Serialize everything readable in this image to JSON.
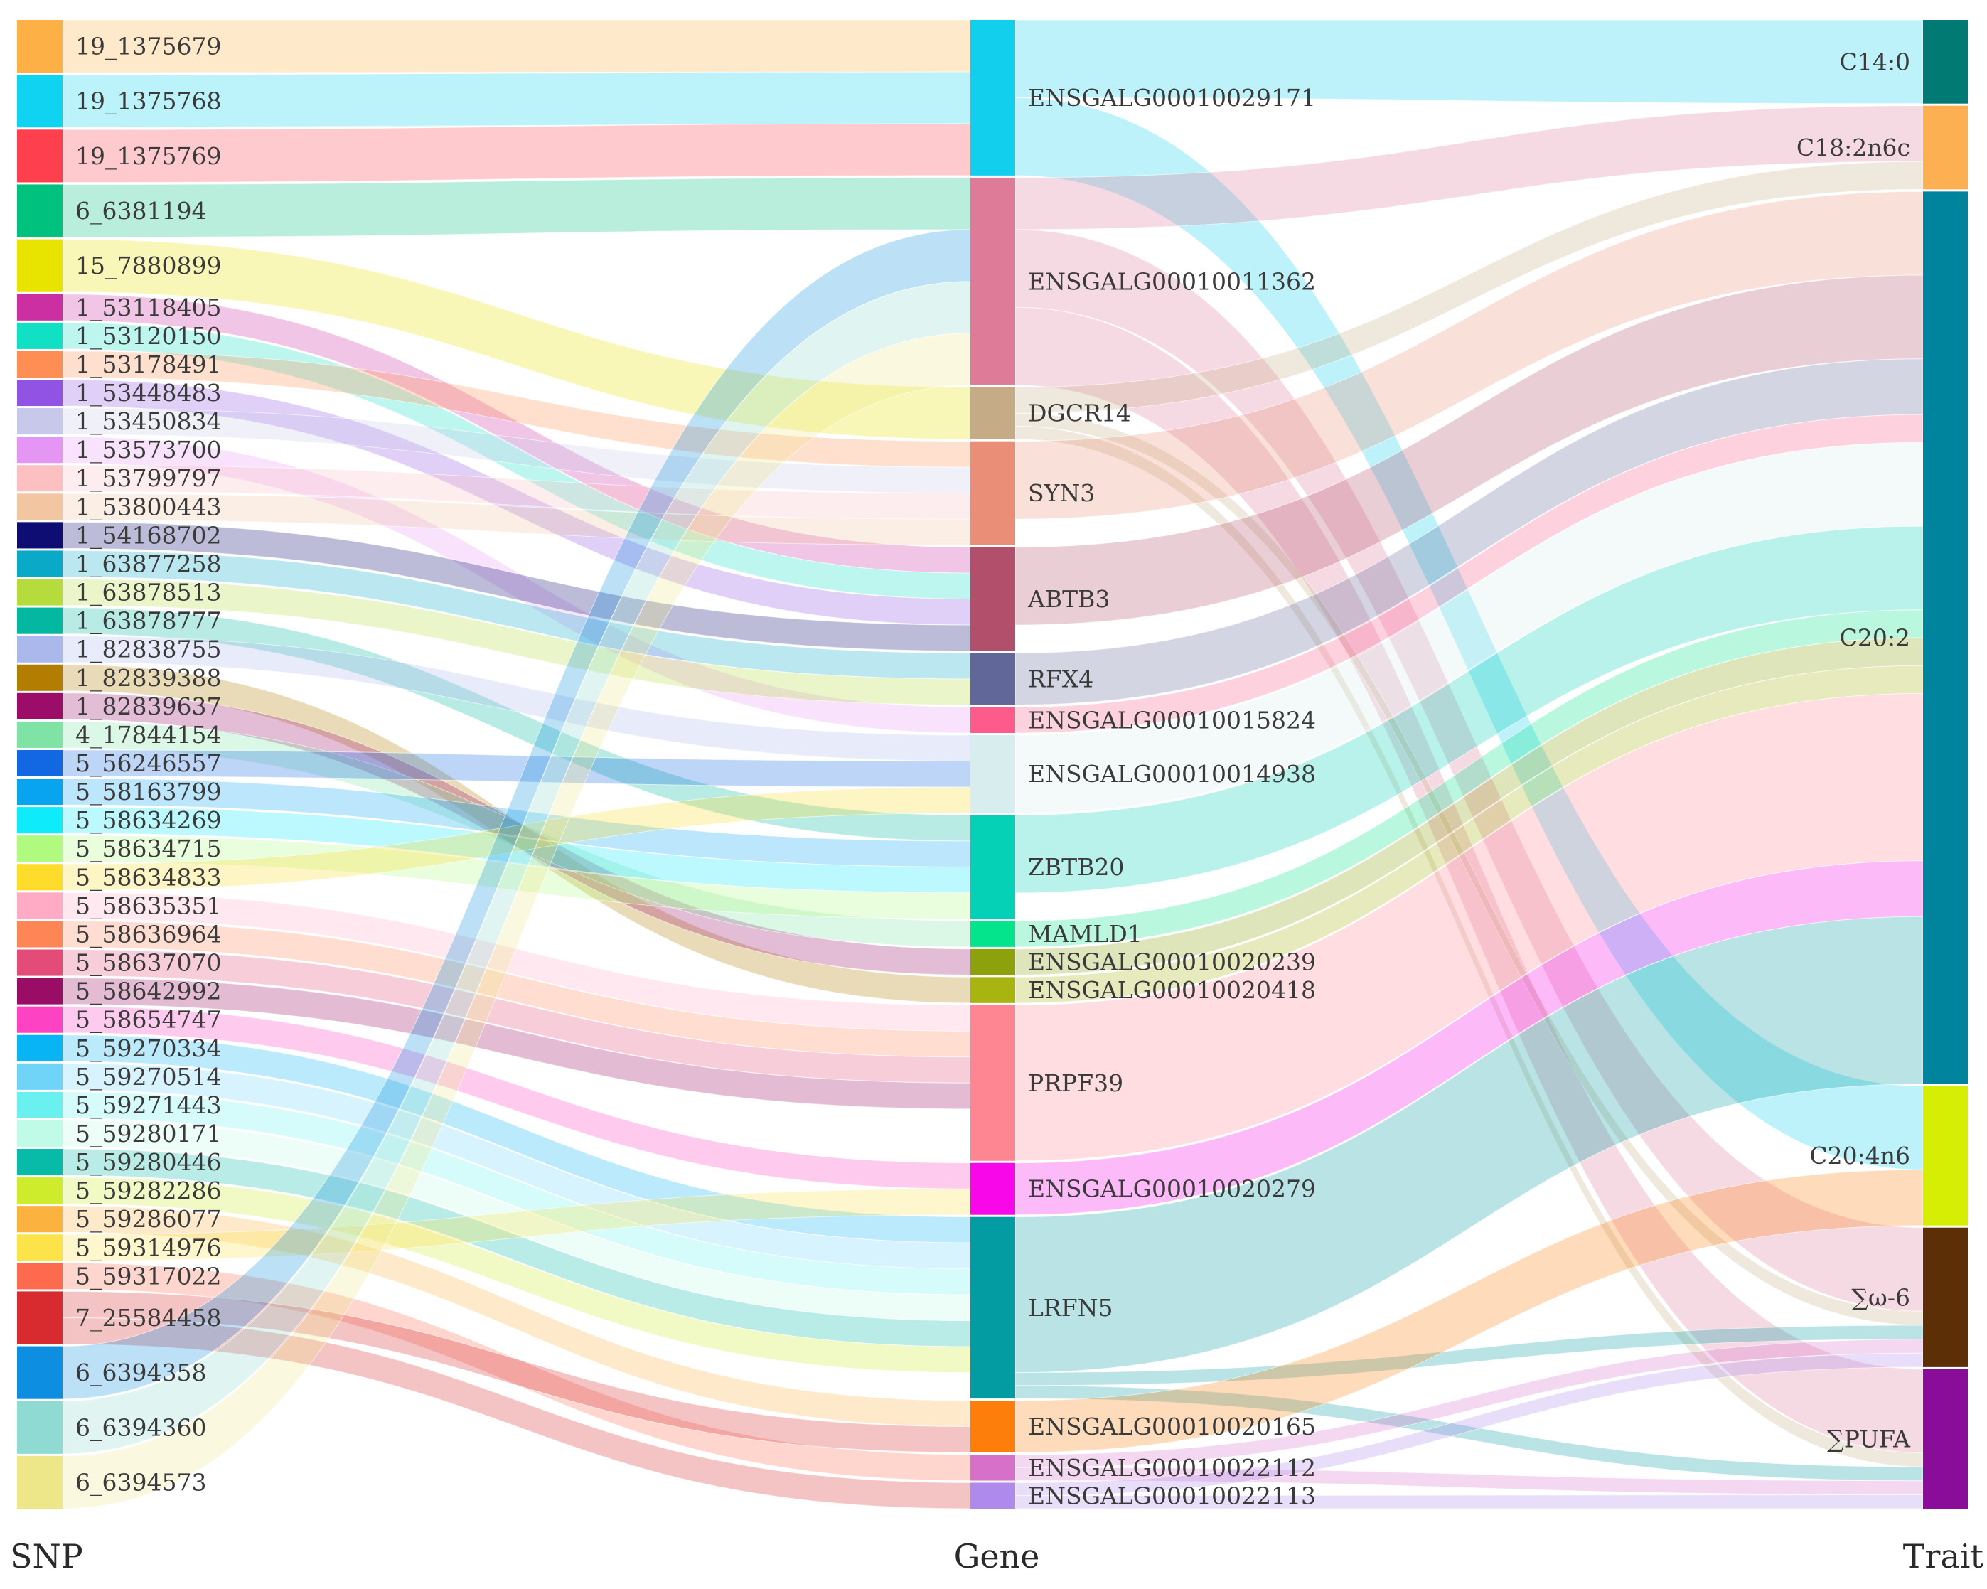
{
  "columns": [
    "SNP",
    "Gene",
    "Trait"
  ],
  "snps": [
    {
      "id": "19_1375679",
      "color": "#FDB045"
    },
    {
      "id": "19_1375768",
      "color": "#0FD3F0"
    },
    {
      "id": "19_1375769",
      "color": "#FE3F4E"
    },
    {
      "id": "6_6381194",
      "color": "#01C17E"
    },
    {
      "id": "15_7880899",
      "color": "#E8E400"
    },
    {
      "id": "1_53118405",
      "color": "#CC2FA1"
    },
    {
      "id": "1_53120150",
      "color": "#12E0C4"
    },
    {
      "id": "1_53178491",
      "color": "#FE8E53"
    },
    {
      "id": "1_53448483",
      "color": "#9053E3"
    },
    {
      "id": "1_53450834",
      "color": "#C8C8EA"
    },
    {
      "id": "1_53573700",
      "color": "#E596F5"
    },
    {
      "id": "1_53799797",
      "color": "#FCC0C2"
    },
    {
      "id": "1_53800443",
      "color": "#F1C6A1"
    },
    {
      "id": "1_54168702",
      "color": "#0D0D73"
    },
    {
      "id": "1_63877258",
      "color": "#0AA9C8"
    },
    {
      "id": "1_63878513",
      "color": "#B5DC3C"
    },
    {
      "id": "1_63878777",
      "color": "#03B7A0"
    },
    {
      "id": "1_82838755",
      "color": "#ABB8EC"
    },
    {
      "id": "1_82839388",
      "color": "#B27D00"
    },
    {
      "id": "1_82839637",
      "color": "#9B0D68"
    },
    {
      "id": "4_17844154",
      "color": "#7FE3A6"
    },
    {
      "id": "5_56246557",
      "color": "#1268E3"
    },
    {
      "id": "5_58163799",
      "color": "#09A4F0"
    },
    {
      "id": "5_58634269",
      "color": "#0EEBFA"
    },
    {
      "id": "5_58634715",
      "color": "#B0FA80"
    },
    {
      "id": "5_58634833",
      "color": "#FDDC2B"
    },
    {
      "id": "5_58635351",
      "color": "#FFABC6"
    },
    {
      "id": "5_58636964",
      "color": "#FE8656"
    },
    {
      "id": "5_58637070",
      "color": "#E34B79"
    },
    {
      "id": "5_58642992",
      "color": "#9A0D66"
    },
    {
      "id": "5_58654747",
      "color": "#FD43C4"
    },
    {
      "id": "5_59270334",
      "color": "#08B4F4"
    },
    {
      "id": "5_59270514",
      "color": "#70D4F8"
    },
    {
      "id": "5_59271443",
      "color": "#6AF0EF"
    },
    {
      "id": "5_59280171",
      "color": "#C0FBE7"
    },
    {
      "id": "5_59280446",
      "color": "#08BBA8"
    },
    {
      "id": "5_59282286",
      "color": "#CEEB2C"
    },
    {
      "id": "5_59286077",
      "color": "#FBB23F"
    },
    {
      "id": "5_59314976",
      "color": "#FDE34A"
    },
    {
      "id": "5_59317022",
      "color": "#FD6A4E"
    },
    {
      "id": "7_25584458",
      "color": "#D82B2F"
    },
    {
      "id": "6_6394358",
      "color": "#0D8EE0"
    },
    {
      "id": "6_6394360",
      "color": "#8FDAD2"
    },
    {
      "id": "6_6394573",
      "color": "#EEE78A"
    }
  ],
  "genes": [
    {
      "id": "ENSGALG00010029171",
      "color": "#13CFEE"
    },
    {
      "id": "ENSGALG00010011362",
      "color": "#DE7B99"
    },
    {
      "id": "DGCR14",
      "color": "#C5AC86"
    },
    {
      "id": "SYN3",
      "color": "#EA8E78"
    },
    {
      "id": "ABTB3",
      "color": "#B24F6B"
    },
    {
      "id": "RFX4",
      "color": "#616899"
    },
    {
      "id": "ENSGALG00010015824",
      "color": "#FD5B8C"
    },
    {
      "id": "ENSGALG00010014938",
      "color": "#D8EEEE"
    },
    {
      "id": "ZBTB20",
      "color": "#04D1B6"
    },
    {
      "id": "MAMLD1",
      "color": "#04E48C"
    },
    {
      "id": "ENSGALG00010020239",
      "color": "#8CA10C"
    },
    {
      "id": "ENSGALG00010020418",
      "color": "#A8B510"
    },
    {
      "id": "PRPF39",
      "color": "#FE8592"
    },
    {
      "id": "ENSGALG00010020279",
      "color": "#F808E8"
    },
    {
      "id": "LRFN5",
      "color": "#039CA3"
    },
    {
      "id": "ENSGALG00010020165",
      "color": "#FD7E0B"
    },
    {
      "id": "ENSGALG00010022112",
      "color": "#D670C8"
    },
    {
      "id": "ENSGALG00010022113",
      "color": "#AE8AEC"
    }
  ],
  "traits": [
    {
      "id": "C14:0",
      "color": "#017A73"
    },
    {
      "id": "C18:2n6c",
      "color": "#FDB052"
    },
    {
      "id": "C20:2",
      "color": "#00849E"
    },
    {
      "id": "C20:4n6",
      "color": "#D6EE03"
    },
    {
      "id": "∑ω-6",
      "color": "#5C2F06"
    },
    {
      "id": "∑PUFA",
      "color": "#8A0D99"
    }
  ],
  "snp_gene_links": [
    {
      "source": "19_1375679",
      "target": "ENSGALG00010029171",
      "value": 1
    },
    {
      "source": "19_1375768",
      "target": "ENSGALG00010029171",
      "value": 1
    },
    {
      "source": "19_1375769",
      "target": "ENSGALG00010029171",
      "value": 1
    },
    {
      "source": "6_6381194",
      "target": "ENSGALG00010011362",
      "value": 1
    },
    {
      "source": "15_7880899",
      "target": "DGCR14",
      "value": 1
    },
    {
      "source": "1_53118405",
      "target": "ABTB3",
      "value": 0.5
    },
    {
      "source": "1_53120150",
      "target": "ABTB3",
      "value": 0.5
    },
    {
      "source": "1_53178491",
      "target": "SYN3",
      "value": 0.5
    },
    {
      "source": "1_53448483",
      "target": "ABTB3",
      "value": 0.5
    },
    {
      "source": "1_53450834",
      "target": "SYN3",
      "value": 0.5
    },
    {
      "source": "1_53573700",
      "target": "ENSGALG00010015824",
      "value": 0.5
    },
    {
      "source": "1_53799797",
      "target": "SYN3",
      "value": 0.5
    },
    {
      "source": "1_53800443",
      "target": "SYN3",
      "value": 0.5
    },
    {
      "source": "1_54168702",
      "target": "ABTB3",
      "value": 0.5
    },
    {
      "source": "1_63877258",
      "target": "RFX4",
      "value": 0.5
    },
    {
      "source": "1_63878513",
      "target": "RFX4",
      "value": 0.5
    },
    {
      "source": "1_63878777",
      "target": "ZBTB20",
      "value": 0.5
    },
    {
      "source": "1_82838755",
      "target": "ENSGALG00010014938",
      "value": 0.5
    },
    {
      "source": "1_82839388",
      "target": "ENSGALG00010020418",
      "value": 0.5
    },
    {
      "source": "1_82839637",
      "target": "ENSGALG00010020239",
      "value": 0.5
    },
    {
      "source": "4_17844154",
      "target": "MAMLD1",
      "value": 0.5
    },
    {
      "source": "5_56246557",
      "target": "ENSGALG00010014938",
      "value": 0.5
    },
    {
      "source": "5_58163799",
      "target": "ZBTB20",
      "value": 0.5
    },
    {
      "source": "5_58634269",
      "target": "ZBTB20",
      "value": 0.5
    },
    {
      "source": "5_58634715",
      "target": "ZBTB20",
      "value": 0.5
    },
    {
      "source": "5_58634833",
      "target": "ENSGALG00010014938",
      "value": 0.5
    },
    {
      "source": "5_58635351",
      "target": "PRPF39",
      "value": 0.5
    },
    {
      "source": "5_58636964",
      "target": "PRPF39",
      "value": 0.5
    },
    {
      "source": "5_58637070",
      "target": "PRPF39",
      "value": 0.5
    },
    {
      "source": "5_58642992",
      "target": "PRPF39",
      "value": 0.5
    },
    {
      "source": "5_58654747",
      "target": "ENSGALG00010020279",
      "value": 0.5
    },
    {
      "source": "5_59270334",
      "target": "LRFN5",
      "value": 0.5
    },
    {
      "source": "5_59270514",
      "target": "LRFN5",
      "value": 0.5
    },
    {
      "source": "5_59271443",
      "target": "LRFN5",
      "value": 0.5
    },
    {
      "source": "5_59280171",
      "target": "LRFN5",
      "value": 0.5
    },
    {
      "source": "5_59280446",
      "target": "LRFN5",
      "value": 0.5
    },
    {
      "source": "5_59282286",
      "target": "LRFN5",
      "value": 0.5
    },
    {
      "source": "5_59286077",
      "target": "ENSGALG00010020165",
      "value": 0.5
    },
    {
      "source": "5_59314976",
      "target": "ENSGALG00010020279",
      "value": 0.5
    },
    {
      "source": "5_59317022",
      "target": "ENSGALG00010022112",
      "value": 0.5
    },
    {
      "source": "7_25584458",
      "target": "ENSGALG00010020165",
      "value": 0.5
    },
    {
      "source": "7_25584458",
      "target": "ENSGALG00010022113",
      "value": 0.5
    },
    {
      "source": "6_6394358",
      "target": "ENSGALG00010011362",
      "value": 1
    },
    {
      "source": "6_6394360",
      "target": "ENSGALG00010011362",
      "value": 1
    },
    {
      "source": "6_6394573",
      "target": "ENSGALG00010011362",
      "value": 1
    }
  ],
  "gene_trait_links": [
    {
      "source": "ENSGALG00010029171",
      "target": "C14:0",
      "value": 1.5
    },
    {
      "source": "ENSGALG00010029171",
      "target": "C20:4n6",
      "value": 1.5
    },
    {
      "source": "ENSGALG00010011362",
      "target": "C18:2n6c",
      "value": 1
    },
    {
      "source": "ENSGALG00010011362",
      "target": "∑ω-6",
      "value": 1.5
    },
    {
      "source": "ENSGALG00010011362",
      "target": "∑PUFA",
      "value": 1.5
    },
    {
      "source": "DGCR14",
      "target": "C18:2n6c",
      "value": 0.5
    },
    {
      "source": "DGCR14",
      "target": "∑ω-6",
      "value": 0.25
    },
    {
      "source": "DGCR14",
      "target": "∑PUFA",
      "value": 0.25
    },
    {
      "source": "SYN3",
      "target": "C20:2",
      "value": 1.5
    },
    {
      "source": "ABTB3",
      "target": "C20:2",
      "value": 1.5
    },
    {
      "source": "RFX4",
      "target": "C20:2",
      "value": 1
    },
    {
      "source": "ENSGALG00010015824",
      "target": "C20:2",
      "value": 0.5
    },
    {
      "source": "ENSGALG00010014938",
      "target": "C20:2",
      "value": 1.5
    },
    {
      "source": "ZBTB20",
      "target": "C20:2",
      "value": 1.5
    },
    {
      "source": "MAMLD1",
      "target": "C20:2",
      "value": 0.5
    },
    {
      "source": "ENSGALG00010020239",
      "target": "C20:2",
      "value": 0.5
    },
    {
      "source": "ENSGALG00010020418",
      "target": "C20:2",
      "value": 0.5
    },
    {
      "source": "PRPF39",
      "target": "C20:2",
      "value": 3
    },
    {
      "source": "ENSGALG00010020279",
      "target": "C20:2",
      "value": 1
    },
    {
      "source": "LRFN5",
      "target": "C20:2",
      "value": 3
    },
    {
      "source": "LRFN5",
      "target": "∑ω-6",
      "value": 0.25
    },
    {
      "source": "LRFN5",
      "target": "∑PUFA",
      "value": 0.25
    },
    {
      "source": "ENSGALG00010020165",
      "target": "C20:4n6",
      "value": 1
    },
    {
      "source": "ENSGALG00010022112",
      "target": "∑ω-6",
      "value": 0.25
    },
    {
      "source": "ENSGALG00010022112",
      "target": "∑PUFA",
      "value": 0.25
    },
    {
      "source": "ENSGALG00010022113",
      "target": "∑ω-6",
      "value": 0.25
    },
    {
      "source": "ENSGALG00010022113",
      "target": "∑PUFA",
      "value": 0.25
    }
  ]
}
